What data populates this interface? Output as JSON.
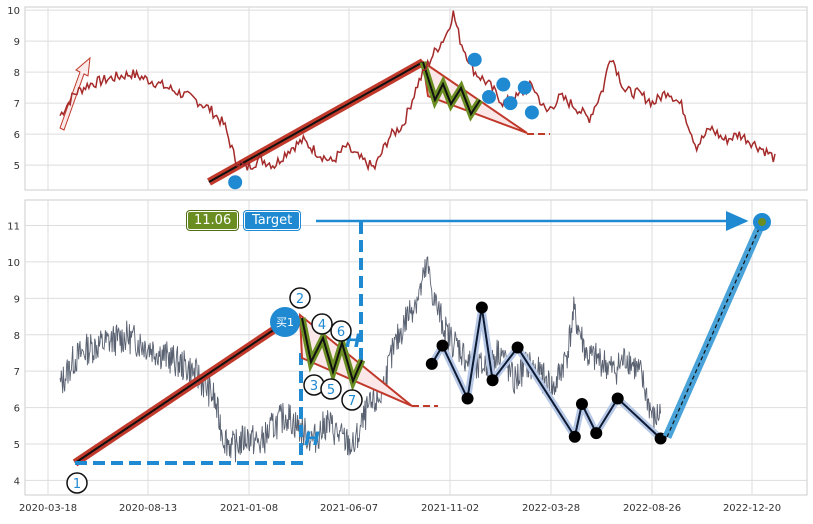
{
  "colors": {
    "price_top": "#a52a2a",
    "price_bottom": "#5a6272",
    "trend_red": "#c0392b",
    "accent_blue": "#1f8ad2",
    "zig_green": "#6b8e23",
    "zig_black": "#111111",
    "grid": "#cccccc"
  },
  "chart_data": [
    {
      "type": "line",
      "panel": "top",
      "ylim": [
        4.2,
        10.1
      ],
      "y_ticks": [
        "5",
        "6",
        "7",
        "8",
        "9",
        "10"
      ],
      "grid": true,
      "series": [
        {
          "values_approx": [
            [
              0.0,
              6.6
            ],
            [
              0.02,
              7.3
            ],
            [
              0.04,
              7.6
            ],
            [
              0.07,
              7.8
            ],
            [
              0.1,
              7.95
            ],
            [
              0.13,
              7.7
            ],
            [
              0.16,
              7.4
            ],
            [
              0.19,
              7.1
            ],
            [
              0.21,
              6.8
            ],
            [
              0.23,
              6.3
            ],
            [
              0.245,
              5.2
            ],
            [
              0.26,
              4.9
            ],
            [
              0.28,
              5.2
            ],
            [
              0.3,
              5.0
            ],
            [
              0.32,
              5.5
            ],
            [
              0.34,
              5.8
            ],
            [
              0.36,
              5.4
            ],
            [
              0.38,
              5.1
            ],
            [
              0.4,
              5.6
            ],
            [
              0.42,
              5.2
            ],
            [
              0.44,
              4.9
            ],
            [
              0.46,
              5.9
            ],
            [
              0.48,
              6.3
            ],
            [
              0.5,
              7.6
            ],
            [
              0.52,
              8.5
            ],
            [
              0.54,
              9.2
            ],
            [
              0.55,
              9.9
            ],
            [
              0.56,
              9.0
            ],
            [
              0.58,
              8.0
            ],
            [
              0.6,
              7.6
            ],
            [
              0.62,
              7.0
            ],
            [
              0.64,
              7.2
            ],
            [
              0.66,
              7.6
            ],
            [
              0.68,
              6.7
            ],
            [
              0.7,
              7.2
            ],
            [
              0.72,
              6.9
            ],
            [
              0.74,
              6.5
            ],
            [
              0.76,
              7.5
            ],
            [
              0.77,
              8.6
            ],
            [
              0.79,
              7.4
            ],
            [
              0.81,
              7.3
            ],
            [
              0.83,
              7.0
            ],
            [
              0.85,
              7.4
            ],
            [
              0.87,
              6.9
            ],
            [
              0.89,
              5.6
            ],
            [
              0.91,
              6.2
            ],
            [
              0.93,
              5.8
            ],
            [
              0.95,
              6.0
            ],
            [
              0.97,
              5.7
            ],
            [
              0.99,
              5.4
            ],
            [
              1.0,
              5.2
            ]
          ]
        }
      ],
      "markers": {
        "points": [
          [
            0.245,
            4.45
          ],
          [
            0.58,
            8.4
          ],
          [
            0.6,
            7.2
          ],
          [
            0.62,
            7.6
          ],
          [
            0.63,
            7.0
          ],
          [
            0.65,
            7.5
          ],
          [
            0.66,
            6.7
          ]
        ]
      }
    },
    {
      "type": "line",
      "panel": "bottom",
      "x_ticks": [
        "2020-03-18",
        "2020-08-13",
        "2021-01-08",
        "2021-06-07",
        "2021-11-02",
        "2022-03-28",
        "2022-08-26",
        "2022-12-20"
      ],
      "ylim": [
        3.6,
        11.7
      ],
      "y_ticks": [
        "4",
        "5",
        "6",
        "7",
        "8",
        "9",
        "10",
        "11"
      ],
      "grid": true,
      "annotations": {
        "target_value": "11.06",
        "target_label": "Target",
        "buy_label": "买1",
        "height_label": "H",
        "pattern_points": [
          "1",
          "2",
          "4",
          "6",
          "3",
          "5",
          "7"
        ]
      },
      "zigzag_points": [
        [
          0.52,
          7.2
        ],
        [
          0.535,
          7.7
        ],
        [
          0.57,
          6.25
        ],
        [
          0.59,
          8.75
        ],
        [
          0.605,
          6.75
        ],
        [
          0.64,
          7.65
        ],
        [
          0.72,
          5.2
        ],
        [
          0.73,
          6.1
        ],
        [
          0.75,
          5.3
        ],
        [
          0.78,
          6.25
        ],
        [
          0.84,
          5.15
        ]
      ]
    }
  ]
}
